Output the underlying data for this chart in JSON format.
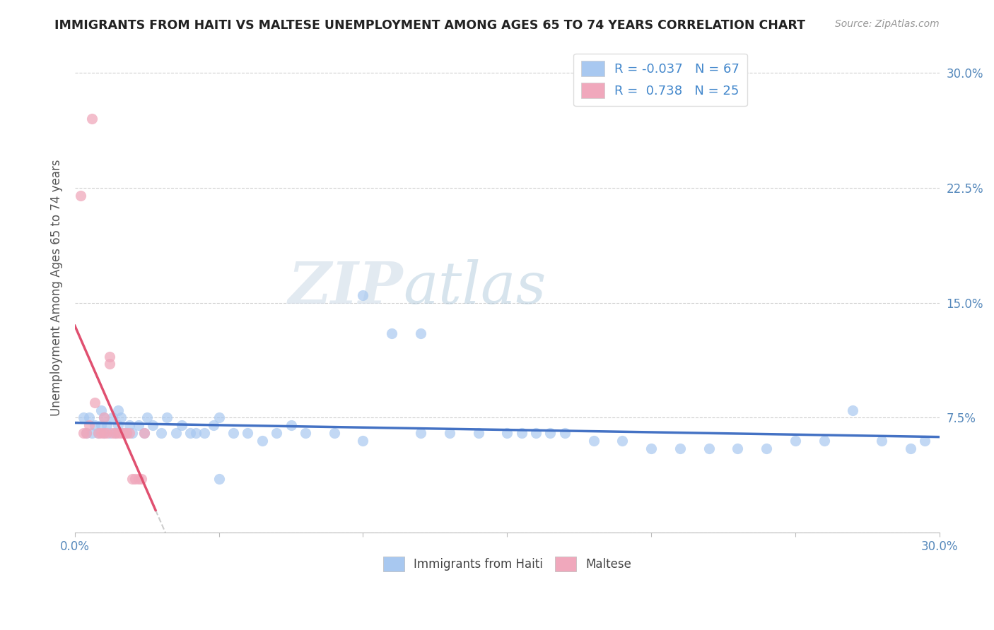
{
  "title": "IMMIGRANTS FROM HAITI VS MALTESE UNEMPLOYMENT AMONG AGES 65 TO 74 YEARS CORRELATION CHART",
  "source": "Source: ZipAtlas.com",
  "ylabel": "Unemployment Among Ages 65 to 74 years",
  "xlim": [
    0.0,
    0.3
  ],
  "ylim": [
    0.0,
    0.32
  ],
  "haiti_R": "-0.037",
  "haiti_N": "67",
  "maltese_R": "0.738",
  "maltese_N": "25",
  "haiti_color": "#a8c8f0",
  "maltese_color": "#f0a8bc",
  "haiti_line_color": "#4472c4",
  "maltese_line_color": "#e05070",
  "haiti_scatter_x": [
    0.003,
    0.004,
    0.005,
    0.006,
    0.007,
    0.008,
    0.009,
    0.009,
    0.01,
    0.01,
    0.011,
    0.012,
    0.013,
    0.014,
    0.015,
    0.015,
    0.016,
    0.017,
    0.018,
    0.019,
    0.02,
    0.022,
    0.024,
    0.025,
    0.027,
    0.03,
    0.032,
    0.035,
    0.037,
    0.04,
    0.042,
    0.045,
    0.048,
    0.05,
    0.055,
    0.06,
    0.065,
    0.07,
    0.075,
    0.08,
    0.09,
    0.1,
    0.11,
    0.12,
    0.12,
    0.13,
    0.14,
    0.15,
    0.155,
    0.16,
    0.165,
    0.17,
    0.18,
    0.19,
    0.2,
    0.21,
    0.22,
    0.23,
    0.24,
    0.25,
    0.26,
    0.27,
    0.28,
    0.29,
    0.295,
    0.05,
    0.1
  ],
  "haiti_scatter_y": [
    0.075,
    0.065,
    0.075,
    0.065,
    0.07,
    0.065,
    0.07,
    0.08,
    0.065,
    0.075,
    0.07,
    0.065,
    0.075,
    0.065,
    0.07,
    0.08,
    0.075,
    0.065,
    0.065,
    0.07,
    0.065,
    0.07,
    0.065,
    0.075,
    0.07,
    0.065,
    0.075,
    0.065,
    0.07,
    0.065,
    0.065,
    0.065,
    0.07,
    0.075,
    0.065,
    0.065,
    0.06,
    0.065,
    0.07,
    0.065,
    0.065,
    0.06,
    0.13,
    0.13,
    0.065,
    0.065,
    0.065,
    0.065,
    0.065,
    0.065,
    0.065,
    0.065,
    0.06,
    0.06,
    0.055,
    0.055,
    0.055,
    0.055,
    0.055,
    0.06,
    0.06,
    0.08,
    0.06,
    0.055,
    0.06,
    0.035,
    0.155
  ],
  "maltese_scatter_x": [
    0.002,
    0.003,
    0.004,
    0.005,
    0.006,
    0.007,
    0.008,
    0.009,
    0.01,
    0.01,
    0.011,
    0.012,
    0.012,
    0.013,
    0.014,
    0.015,
    0.016,
    0.017,
    0.018,
    0.019,
    0.02,
    0.021,
    0.022,
    0.023,
    0.024
  ],
  "maltese_scatter_y": [
    0.22,
    0.065,
    0.065,
    0.07,
    0.27,
    0.085,
    0.065,
    0.065,
    0.065,
    0.075,
    0.065,
    0.11,
    0.115,
    0.065,
    0.065,
    0.065,
    0.065,
    0.065,
    0.065,
    0.065,
    0.035,
    0.035,
    0.035,
    0.035,
    0.065
  ],
  "grid_color": "#d0d0d0",
  "background_color": "#ffffff",
  "ytick_vals": [
    0.0,
    0.075,
    0.15,
    0.225,
    0.3
  ],
  "ytick_labels": [
    "",
    "7.5%",
    "15.0%",
    "22.5%",
    "30.0%"
  ],
  "xtick_vals": [
    0.0,
    0.3
  ],
  "xtick_labels": [
    "0.0%",
    "30.0%"
  ]
}
